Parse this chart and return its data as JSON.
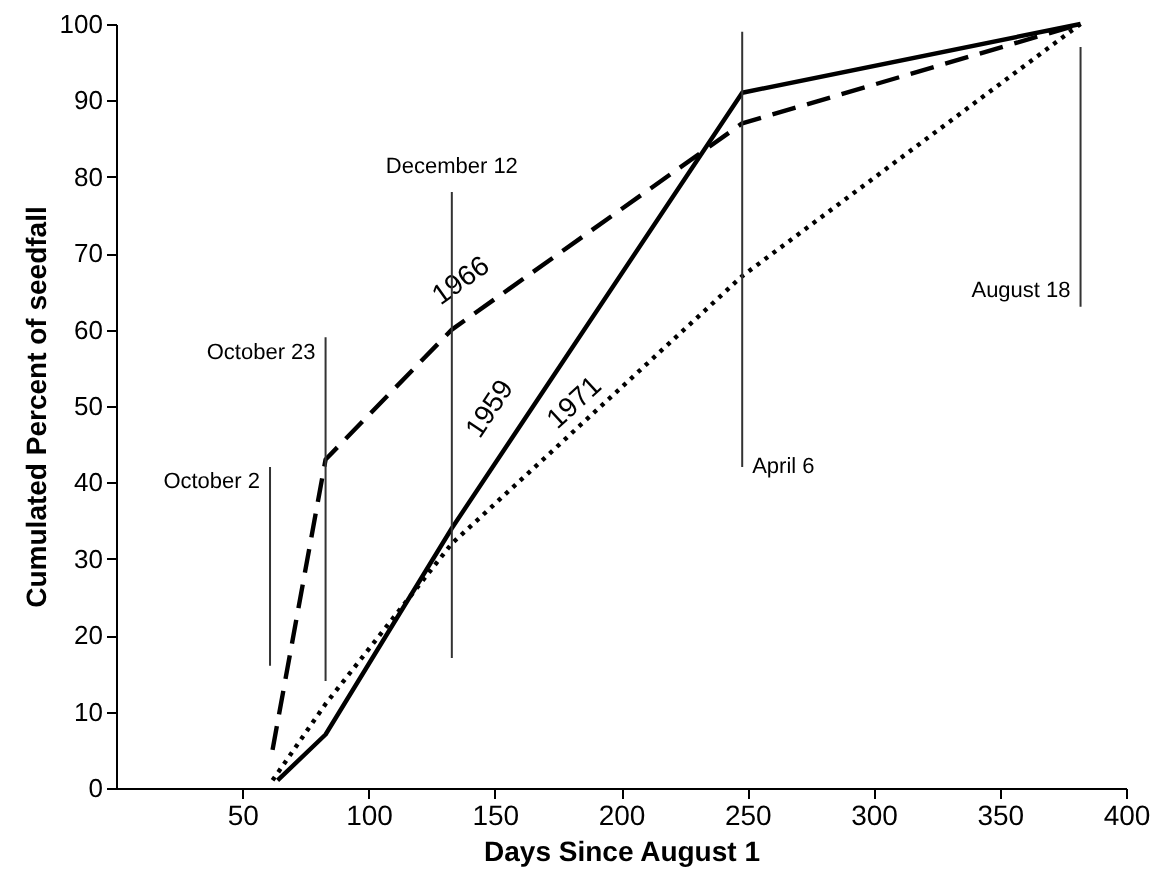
{
  "chart_data": {
    "type": "line",
    "xlabel": "Days Since August 1",
    "ylabel": "Cumulated Percent of seedfall",
    "xlim": [
      0,
      400
    ],
    "xticks": [
      50,
      100,
      150,
      200,
      250,
      300,
      350,
      400
    ],
    "ylim": [
      0,
      100
    ],
    "yticks": [
      0,
      10,
      20,
      30,
      40,
      50,
      60,
      70,
      80,
      90,
      100
    ],
    "marker": "none",
    "series": [
      {
        "name": "1966",
        "color": "#000000",
        "line_style": "dashed",
        "x": [
          62,
          83,
          133,
          248,
          382
        ],
        "values": [
          5,
          43,
          60,
          87,
          100
        ]
      },
      {
        "name": "1959",
        "color": "#000000",
        "line_style": "solid",
        "x": [
          64,
          83,
          133,
          248,
          382
        ],
        "values": [
          1,
          7,
          34,
          91,
          100
        ]
      },
      {
        "name": "1971",
        "color": "#000000",
        "line_style": "dotted",
        "x": [
          62,
          83,
          133,
          248,
          382
        ],
        "values": [
          1,
          11,
          32,
          67,
          100
        ]
      }
    ],
    "ref_lines": [
      {
        "axis": "x",
        "value": 61,
        "label": "October 2",
        "color": "#333333"
      },
      {
        "axis": "x",
        "value": 83,
        "label": "October 23",
        "color": "#333333"
      },
      {
        "axis": "x",
        "value": 133,
        "label": "December 12",
        "color": "#333333"
      },
      {
        "axis": "x",
        "value": 248,
        "label": "April 6",
        "color": "#333333"
      },
      {
        "axis": "x",
        "value": 382,
        "label": "August 18",
        "color": "#333333"
      }
    ]
  }
}
